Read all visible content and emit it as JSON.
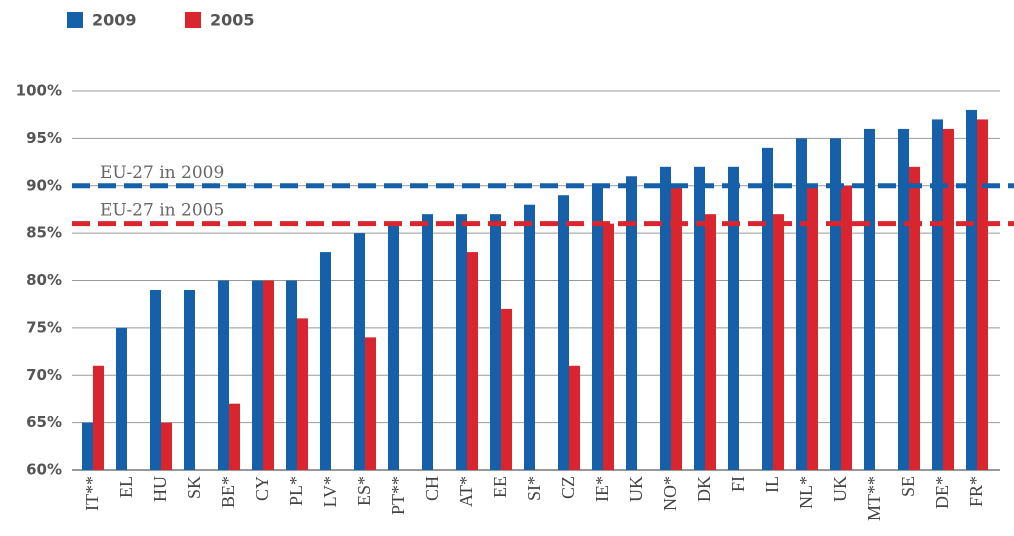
{
  "chart_data": {
    "type": "bar",
    "categories": [
      "IT**",
      "EL",
      "HU",
      "SK",
      "BE*",
      "CY",
      "PL*",
      "LV*",
      "ES*",
      "PT**",
      "CH",
      "AT*",
      "EE",
      "SI*",
      "CZ",
      "IE*",
      "UK",
      "NO*",
      "DK",
      "FI",
      "IL",
      "NL*",
      "UK",
      "MT**",
      "SE",
      "DE*",
      "FR*"
    ],
    "series": [
      {
        "name": "2009",
        "color": "#1560a8",
        "values": [
          65,
          75,
          79,
          79,
          80,
          80,
          80,
          83,
          85,
          86,
          87,
          87,
          87,
          88,
          89,
          90,
          91,
          92,
          92,
          92,
          94,
          95,
          95,
          96,
          96,
          97,
          98
        ]
      },
      {
        "name": "2005",
        "color": "#d9262e",
        "values": [
          71,
          null,
          65,
          null,
          67,
          80,
          76,
          null,
          74,
          null,
          null,
          83,
          77,
          null,
          71,
          86,
          null,
          90,
          87,
          null,
          87,
          90,
          90,
          null,
          92,
          96,
          97
        ]
      }
    ],
    "reference_lines": [
      {
        "label": "EU-27 in 2009",
        "value": 90,
        "color": "#1560a8"
      },
      {
        "label": "EU-27 in 2005",
        "value": 86,
        "color": "#d9262e"
      }
    ],
    "ylim": [
      60,
      100
    ],
    "yticks": [
      {
        "value": 60,
        "label": "60%"
      },
      {
        "value": 65,
        "label": "65%"
      },
      {
        "value": 70,
        "label": "70%"
      },
      {
        "value": 75,
        "label": "75%"
      },
      {
        "value": 80,
        "label": "80%"
      },
      {
        "value": 85,
        "label": "85%"
      },
      {
        "value": 90,
        "label": "90%"
      },
      {
        "value": 95,
        "label": "95%"
      },
      {
        "value": 100,
        "label": "100%"
      }
    ],
    "grid": true
  }
}
